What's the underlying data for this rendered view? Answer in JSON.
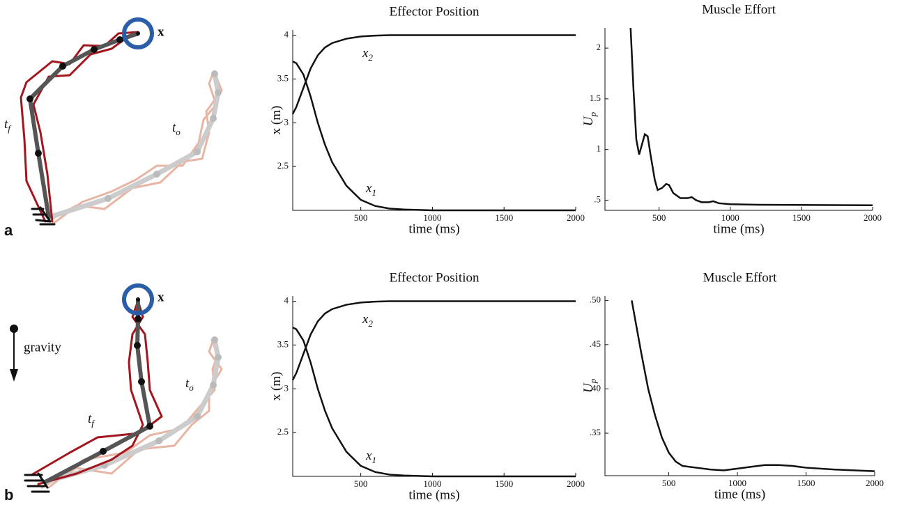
{
  "chart_data": [
    {
      "type": "line",
      "title": "Effector Position",
      "xlabel": "time (ms)",
      "ylabel": "x (m)",
      "xlim": [
        25,
        2000
      ],
      "xticks": [
        500,
        1000,
        1500,
        2000
      ],
      "ylim": [
        2,
        4.06
      ],
      "yticks": [
        2.5,
        3,
        3.5,
        4
      ],
      "x": [
        25,
        50,
        100,
        150,
        200,
        250,
        300,
        400,
        500,
        600,
        700,
        800,
        1000,
        1500,
        2000
      ],
      "series": [
        {
          "name": "x",
          "sub": "1",
          "color": "#111111",
          "values": [
            3.7,
            3.68,
            3.55,
            3.3,
            3.0,
            2.75,
            2.55,
            2.28,
            2.12,
            2.05,
            2.02,
            2.01,
            2.0,
            2.0,
            2.0
          ]
        },
        {
          "name": "x",
          "sub": "2",
          "color": "#111111",
          "values": [
            3.1,
            3.18,
            3.4,
            3.62,
            3.77,
            3.86,
            3.91,
            3.96,
            3.985,
            3.995,
            4,
            4,
            4,
            4,
            4
          ]
        }
      ]
    },
    {
      "type": "line",
      "title": "Muscle Effort",
      "xlabel": "time (ms)",
      "ylabel": "U",
      "ylabel_sub": "p",
      "xlim": [
        120,
        2000
      ],
      "xticks": [
        500,
        1000,
        1500,
        2000
      ],
      "ylim": [
        0.4,
        2.2
      ],
      "yticks": [
        {
          "value": 0.5,
          "label": ".5"
        },
        1,
        1.5,
        2
      ],
      "x": [
        300,
        320,
        340,
        360,
        380,
        400,
        420,
        440,
        470,
        490,
        520,
        550,
        570,
        600,
        650,
        700,
        730,
        760,
        800,
        850,
        880,
        920,
        1000,
        1200,
        2000
      ],
      "series": [
        {
          "color": "#111111",
          "values": [
            2.2,
            1.6,
            1.1,
            0.95,
            1.05,
            1.15,
            1.13,
            0.95,
            0.7,
            0.6,
            0.62,
            0.66,
            0.65,
            0.57,
            0.52,
            0.52,
            0.53,
            0.5,
            0.48,
            0.48,
            0.49,
            0.47,
            0.46,
            0.455,
            0.45
          ]
        }
      ]
    },
    {
      "type": "line",
      "title": "Effector Position",
      "xlabel": "time (ms)",
      "ylabel": "x (m)",
      "xlim": [
        25,
        2000
      ],
      "xticks": [
        500,
        1000,
        1500,
        2000
      ],
      "ylim": [
        2,
        4.06
      ],
      "yticks": [
        2.5,
        3,
        3.5,
        4
      ],
      "x": [
        25,
        50,
        100,
        150,
        200,
        250,
        300,
        400,
        500,
        600,
        700,
        800,
        1000,
        1500,
        2000
      ],
      "series": [
        {
          "name": "x",
          "sub": "1",
          "color": "#111111",
          "values": [
            3.7,
            3.68,
            3.55,
            3.3,
            3.0,
            2.75,
            2.55,
            2.28,
            2.12,
            2.05,
            2.02,
            2.01,
            2.0,
            2.0,
            2.0
          ]
        },
        {
          "name": "x",
          "sub": "2",
          "color": "#111111",
          "values": [
            3.1,
            3.18,
            3.4,
            3.62,
            3.77,
            3.86,
            3.91,
            3.96,
            3.985,
            3.995,
            4,
            4,
            4,
            4,
            4
          ]
        }
      ]
    },
    {
      "type": "line",
      "title": "Muscle Effort",
      "xlabel": "time (ms)",
      "ylabel": "U",
      "ylabel_sub": "p",
      "xlim": [
        35,
        2000
      ],
      "xticks": [
        500,
        1000,
        1500,
        2000
      ],
      "ylim": [
        0.302,
        0.505
      ],
      "yticks": [
        {
          "value": 0.35,
          "label": ".35"
        },
        {
          "value": 0.4,
          "label": ".40"
        },
        {
          "value": 0.45,
          "label": ".45"
        },
        {
          "value": 0.5,
          "label": ".50"
        }
      ],
      "x": [
        230,
        300,
        350,
        400,
        450,
        500,
        550,
        600,
        700,
        800,
        900,
        1000,
        1100,
        1200,
        1300,
        1400,
        1500,
        1700,
        2000
      ],
      "series": [
        {
          "color": "#111111",
          "values": [
            0.5,
            0.44,
            0.4,
            0.37,
            0.345,
            0.328,
            0.318,
            0.313,
            0.311,
            0.309,
            0.308,
            0.31,
            0.312,
            0.314,
            0.314,
            0.313,
            0.311,
            0.309,
            0.307
          ]
        }
      ]
    }
  ],
  "diagrams": [
    {
      "panel": "a",
      "target": "x",
      "final": "t",
      "final_sub": "f",
      "initial": "t",
      "initial_sub": "o"
    },
    {
      "panel": "b",
      "target": "x",
      "final": "t",
      "final_sub": "f",
      "initial": "t",
      "initial_sub": "o",
      "force": "gravity"
    }
  ]
}
